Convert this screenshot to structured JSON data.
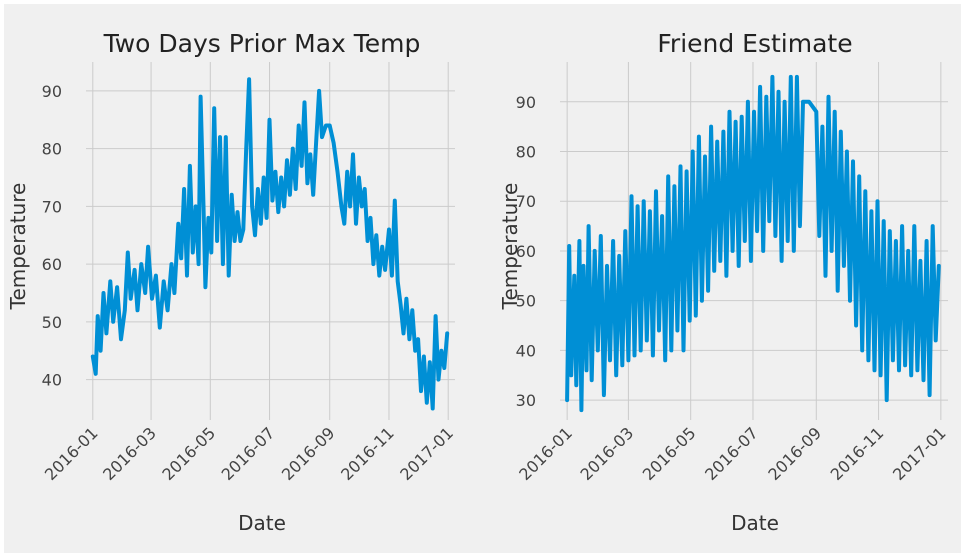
{
  "chart_data": [
    {
      "type": "line",
      "title": "Two Days Prior Max Temp",
      "xlabel": "Date",
      "ylabel": "Temperature",
      "x_ticks": [
        "2016-01",
        "2016-03",
        "2016-05",
        "2016-07",
        "2016-09",
        "2016-11",
        "2017-01"
      ],
      "y_ticks": [
        40,
        50,
        60,
        70,
        80,
        90
      ],
      "xlim": [
        "2015-12-25",
        "2017-01-08"
      ],
      "ylim": [
        33,
        95
      ],
      "grid": true,
      "series": [
        {
          "color": "#008fd5",
          "points": [
            [
              "2016-01-01",
              44
            ],
            [
              "2016-01-04",
              41
            ],
            [
              "2016-01-06",
              51
            ],
            [
              "2016-01-09",
              45
            ],
            [
              "2016-01-12",
              55
            ],
            [
              "2016-01-15",
              48
            ],
            [
              "2016-01-19",
              57
            ],
            [
              "2016-01-22",
              50
            ],
            [
              "2016-01-26",
              56
            ],
            [
              "2016-01-30",
              47
            ],
            [
              "2016-02-03",
              52
            ],
            [
              "2016-02-06",
              62
            ],
            [
              "2016-02-09",
              54
            ],
            [
              "2016-02-13",
              59
            ],
            [
              "2016-02-16",
              52
            ],
            [
              "2016-02-20",
              60
            ],
            [
              "2016-02-24",
              55
            ],
            [
              "2016-02-27",
              63
            ],
            [
              "2016-03-02",
              54
            ],
            [
              "2016-03-06",
              58
            ],
            [
              "2016-03-10",
              49
            ],
            [
              "2016-03-14",
              57
            ],
            [
              "2016-03-18",
              52
            ],
            [
              "2016-03-22",
              60
            ],
            [
              "2016-03-25",
              55
            ],
            [
              "2016-03-29",
              67
            ],
            [
              "2016-04-01",
              61
            ],
            [
              "2016-04-04",
              73
            ],
            [
              "2016-04-07",
              58
            ],
            [
              "2016-04-10",
              77
            ],
            [
              "2016-04-13",
              62
            ],
            [
              "2016-04-16",
              70
            ],
            [
              "2016-04-19",
              60
            ],
            [
              "2016-04-21",
              89
            ],
            [
              "2016-04-24",
              70
            ],
            [
              "2016-04-26",
              56
            ],
            [
              "2016-04-29",
              68
            ],
            [
              "2016-05-02",
              62
            ],
            [
              "2016-05-05",
              87
            ],
            [
              "2016-05-08",
              64
            ],
            [
              "2016-05-11",
              82
            ],
            [
              "2016-05-14",
              60
            ],
            [
              "2016-05-17",
              82
            ],
            [
              "2016-05-20",
              58
            ],
            [
              "2016-05-23",
              72
            ],
            [
              "2016-05-26",
              64
            ],
            [
              "2016-05-29",
              69
            ],
            [
              "2016-06-01",
              64
            ],
            [
              "2016-06-04",
              66
            ],
            [
              "2016-06-07",
              80
            ],
            [
              "2016-06-10",
              92
            ],
            [
              "2016-06-13",
              70
            ],
            [
              "2016-06-16",
              65
            ],
            [
              "2016-06-19",
              73
            ],
            [
              "2016-06-22",
              67
            ],
            [
              "2016-06-25",
              75
            ],
            [
              "2016-06-28",
              68
            ],
            [
              "2016-07-01",
              85
            ],
            [
              "2016-07-04",
              71
            ],
            [
              "2016-07-07",
              76
            ],
            [
              "2016-07-10",
              69
            ],
            [
              "2016-07-13",
              75
            ],
            [
              "2016-07-16",
              70
            ],
            [
              "2016-07-19",
              78
            ],
            [
              "2016-07-22",
              72
            ],
            [
              "2016-07-25",
              80
            ],
            [
              "2016-07-28",
              73
            ],
            [
              "2016-07-31",
              84
            ],
            [
              "2016-08-03",
              77
            ],
            [
              "2016-08-06",
              88
            ],
            [
              "2016-08-09",
              74
            ],
            [
              "2016-08-12",
              79
            ],
            [
              "2016-08-15",
              72
            ],
            [
              "2016-08-18",
              81
            ],
            [
              "2016-08-21",
              90
            ],
            [
              "2016-08-24",
              82
            ],
            [
              "2016-08-28",
              84
            ],
            [
              "2016-09-01",
              84
            ],
            [
              "2016-09-05",
              81
            ],
            [
              "2016-09-09",
              76
            ],
            [
              "2016-09-13",
              70
            ],
            [
              "2016-09-16",
              67
            ],
            [
              "2016-09-19",
              76
            ],
            [
              "2016-09-22",
              70
            ],
            [
              "2016-09-25",
              79
            ],
            [
              "2016-09-28",
              67
            ],
            [
              "2016-10-01",
              75
            ],
            [
              "2016-10-04",
              70
            ],
            [
              "2016-10-07",
              73
            ],
            [
              "2016-10-10",
              64
            ],
            [
              "2016-10-13",
              68
            ],
            [
              "2016-10-16",
              60
            ],
            [
              "2016-10-19",
              65
            ],
            [
              "2016-10-22",
              58
            ],
            [
              "2016-10-25",
              63
            ],
            [
              "2016-10-28",
              59
            ],
            [
              "2016-11-01",
              66
            ],
            [
              "2016-11-04",
              58
            ],
            [
              "2016-11-07",
              71
            ],
            [
              "2016-11-10",
              57
            ],
            [
              "2016-11-13",
              53
            ],
            [
              "2016-11-16",
              48
            ],
            [
              "2016-11-19",
              54
            ],
            [
              "2016-11-22",
              47
            ],
            [
              "2016-11-25",
              52
            ],
            [
              "2016-11-28",
              45
            ],
            [
              "2016-12-01",
              47
            ],
            [
              "2016-12-04",
              38
            ],
            [
              "2016-12-07",
              44
            ],
            [
              "2016-12-10",
              36
            ],
            [
              "2016-12-13",
              43
            ],
            [
              "2016-12-16",
              35
            ],
            [
              "2016-12-19",
              51
            ],
            [
              "2016-12-22",
              40
            ],
            [
              "2016-12-25",
              45
            ],
            [
              "2016-12-28",
              42
            ],
            [
              "2016-12-31",
              48
            ]
          ]
        }
      ]
    },
    {
      "type": "line",
      "title": "Friend Estimate",
      "xlabel": "Date",
      "ylabel": "Temperature",
      "x_ticks": [
        "2016-01",
        "2016-03",
        "2016-05",
        "2016-07",
        "2016-09",
        "2016-11",
        "2017-01"
      ],
      "y_ticks": [
        30,
        40,
        50,
        60,
        70,
        80,
        90
      ],
      "xlim": [
        "2015-12-25",
        "2017-01-08"
      ],
      "ylim": [
        26,
        98
      ],
      "grid": true,
      "series": [
        {
          "color": "#008fd5",
          "points": [
            [
              "2016-01-01",
              30
            ],
            [
              "2016-01-03",
              61
            ],
            [
              "2016-01-05",
              35
            ],
            [
              "2016-01-08",
              55
            ],
            [
              "2016-01-10",
              33
            ],
            [
              "2016-01-13",
              62
            ],
            [
              "2016-01-15",
              28
            ],
            [
              "2016-01-17",
              57
            ],
            [
              "2016-01-20",
              36
            ],
            [
              "2016-01-22",
              65
            ],
            [
              "2016-01-25",
              34
            ],
            [
              "2016-01-28",
              60
            ],
            [
              "2016-01-31",
              40
            ],
            [
              "2016-02-03",
              63
            ],
            [
              "2016-02-06",
              31
            ],
            [
              "2016-02-09",
              57
            ],
            [
              "2016-02-12",
              38
            ],
            [
              "2016-02-15",
              62
            ],
            [
              "2016-02-18",
              35
            ],
            [
              "2016-02-21",
              59
            ],
            [
              "2016-02-24",
              37
            ],
            [
              "2016-02-27",
              64
            ],
            [
              "2016-03-01",
              38
            ],
            [
              "2016-03-04",
              71
            ],
            [
              "2016-03-07",
              39
            ],
            [
              "2016-03-10",
              69
            ],
            [
              "2016-03-13",
              40
            ],
            [
              "2016-03-16",
              70
            ],
            [
              "2016-03-19",
              42
            ],
            [
              "2016-03-22",
              68
            ],
            [
              "2016-03-25",
              39
            ],
            [
              "2016-03-28",
              72
            ],
            [
              "2016-03-31",
              44
            ],
            [
              "2016-04-03",
              67
            ],
            [
              "2016-04-06",
              38
            ],
            [
              "2016-04-09",
              75
            ],
            [
              "2016-04-12",
              40
            ],
            [
              "2016-04-15",
              73
            ],
            [
              "2016-04-18",
              44
            ],
            [
              "2016-04-21",
              77
            ],
            [
              "2016-04-24",
              40
            ],
            [
              "2016-04-27",
              76
            ],
            [
              "2016-04-30",
              46
            ],
            [
              "2016-05-03",
              80
            ],
            [
              "2016-05-06",
              47
            ],
            [
              "2016-05-09",
              83
            ],
            [
              "2016-05-12",
              50
            ],
            [
              "2016-05-15",
              79
            ],
            [
              "2016-05-18",
              52
            ],
            [
              "2016-05-21",
              85
            ],
            [
              "2016-05-24",
              56
            ],
            [
              "2016-05-27",
              82
            ],
            [
              "2016-05-30",
              58
            ],
            [
              "2016-06-02",
              84
            ],
            [
              "2016-06-05",
              55
            ],
            [
              "2016-06-08",
              88
            ],
            [
              "2016-06-11",
              60
            ],
            [
              "2016-06-14",
              86
            ],
            [
              "2016-06-17",
              57
            ],
            [
              "2016-06-20",
              87
            ],
            [
              "2016-06-23",
              62
            ],
            [
              "2016-06-26",
              90
            ],
            [
              "2016-06-29",
              58
            ],
            [
              "2016-07-02",
              88
            ],
            [
              "2016-07-05",
              64
            ],
            [
              "2016-07-08",
              93
            ],
            [
              "2016-07-11",
              60
            ],
            [
              "2016-07-14",
              91
            ],
            [
              "2016-07-17",
              66
            ],
            [
              "2016-07-20",
              95
            ],
            [
              "2016-07-23",
              63
            ],
            [
              "2016-07-26",
              92
            ],
            [
              "2016-07-29",
              58
            ],
            [
              "2016-08-01",
              90
            ],
            [
              "2016-08-04",
              62
            ],
            [
              "2016-08-07",
              95
            ],
            [
              "2016-08-10",
              60
            ],
            [
              "2016-08-13",
              95
            ],
            [
              "2016-08-16",
              65
            ],
            [
              "2016-08-19",
              90
            ],
            [
              "2016-08-25",
              90
            ],
            [
              "2016-09-01",
              88
            ],
            [
              "2016-09-04",
              63
            ],
            [
              "2016-09-07",
              85
            ],
            [
              "2016-09-10",
              55
            ],
            [
              "2016-09-13",
              91
            ],
            [
              "2016-09-16",
              60
            ],
            [
              "2016-09-19",
              88
            ],
            [
              "2016-09-22",
              52
            ],
            [
              "2016-09-25",
              84
            ],
            [
              "2016-09-28",
              57
            ],
            [
              "2016-10-01",
              80
            ],
            [
              "2016-10-04",
              50
            ],
            [
              "2016-10-07",
              78
            ],
            [
              "2016-10-10",
              45
            ],
            [
              "2016-10-13",
              75
            ],
            [
              "2016-10-16",
              40
            ],
            [
              "2016-10-19",
              72
            ],
            [
              "2016-10-22",
              38
            ],
            [
              "2016-10-25",
              68
            ],
            [
              "2016-10-28",
              36
            ],
            [
              "2016-10-31",
              70
            ],
            [
              "2016-11-03",
              35
            ],
            [
              "2016-11-06",
              66
            ],
            [
              "2016-11-09",
              30
            ],
            [
              "2016-11-12",
              64
            ],
            [
              "2016-11-15",
              38
            ],
            [
              "2016-11-18",
              62
            ],
            [
              "2016-11-21",
              36
            ],
            [
              "2016-11-24",
              65
            ],
            [
              "2016-11-27",
              37
            ],
            [
              "2016-11-30",
              60
            ],
            [
              "2016-12-03",
              35
            ],
            [
              "2016-12-06",
              65
            ],
            [
              "2016-12-09",
              36
            ],
            [
              "2016-12-12",
              58
            ],
            [
              "2016-12-15",
              34
            ],
            [
              "2016-12-18",
              62
            ],
            [
              "2016-12-21",
              31
            ],
            [
              "2016-12-24",
              65
            ],
            [
              "2016-12-27",
              42
            ],
            [
              "2016-12-30",
              57
            ]
          ]
        }
      ]
    }
  ]
}
